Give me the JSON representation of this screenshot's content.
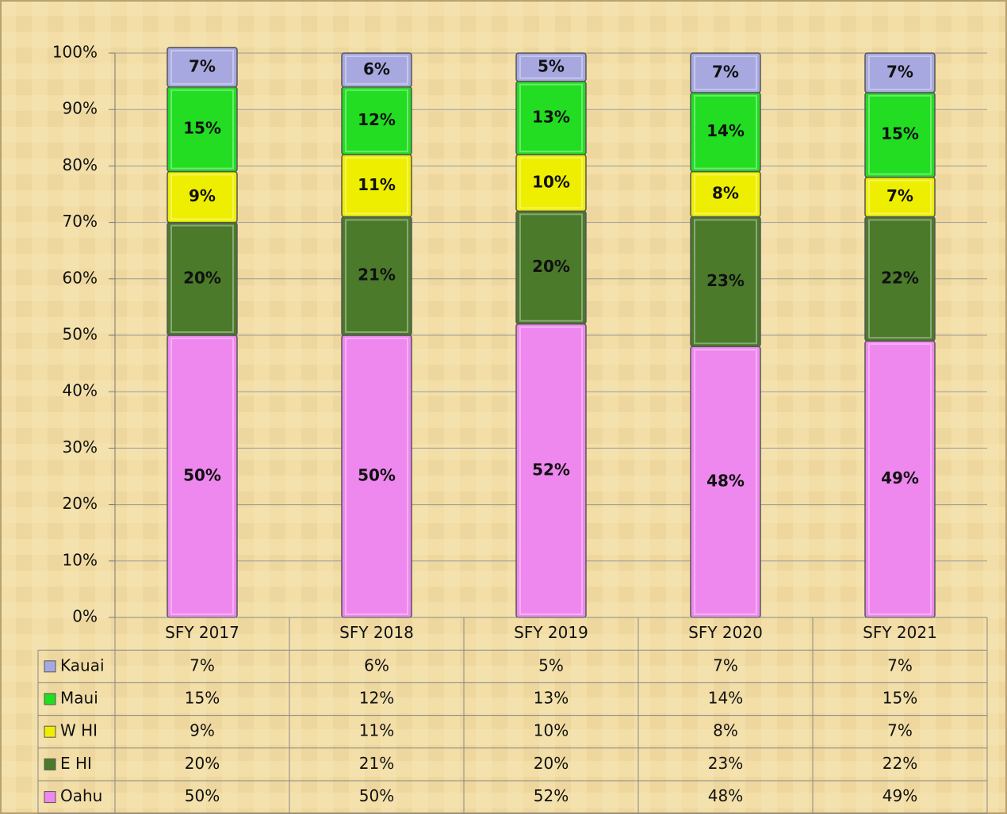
{
  "chart_data": {
    "type": "stacked_bar",
    "categories": [
      "SFY 2017",
      "SFY 2018",
      "SFY 2019",
      "SFY 2020",
      "SFY 2021"
    ],
    "series": [
      {
        "name": "Oahu",
        "color": "#ee88ee",
        "values": [
          50,
          50,
          52,
          48,
          49
        ],
        "value_labels": [
          "50%",
          "50%",
          "52%",
          "48%",
          "49%"
        ]
      },
      {
        "name": "E HI",
        "color": "#4a7a2a",
        "values": [
          20,
          21,
          20,
          23,
          22
        ],
        "value_labels": [
          "20%",
          "21%",
          "20%",
          "23%",
          "22%"
        ]
      },
      {
        "name": "W HI",
        "color": "#eeee00",
        "values": [
          9,
          11,
          10,
          8,
          7
        ],
        "value_labels": [
          "9%",
          "11%",
          "10%",
          "8%",
          "7%"
        ]
      },
      {
        "name": "Maui",
        "color": "#22dd22",
        "values": [
          15,
          12,
          13,
          14,
          15
        ],
        "value_labels": [
          "15%",
          "12%",
          "13%",
          "14%",
          "15%"
        ]
      },
      {
        "name": "Kauai",
        "color": "#a8a8e0",
        "values": [
          7,
          6,
          5,
          7,
          7
        ],
        "value_labels": [
          "7%",
          "6%",
          "5%",
          "7%",
          "7%"
        ]
      }
    ],
    "ylim": [
      0,
      100
    ],
    "yticks": [
      {
        "value": 0,
        "label": "0%"
      },
      {
        "value": 10,
        "label": "10%"
      },
      {
        "value": 20,
        "label": "20%"
      },
      {
        "value": 30,
        "label": "30%"
      },
      {
        "value": 40,
        "label": "40%"
      },
      {
        "value": 50,
        "label": "50%"
      },
      {
        "value": 60,
        "label": "60%"
      },
      {
        "value": 70,
        "label": "70%"
      },
      {
        "value": 80,
        "label": "80%"
      },
      {
        "value": 90,
        "label": "90%"
      },
      {
        "value": 100,
        "label": "100%"
      }
    ],
    "grid": true
  }
}
